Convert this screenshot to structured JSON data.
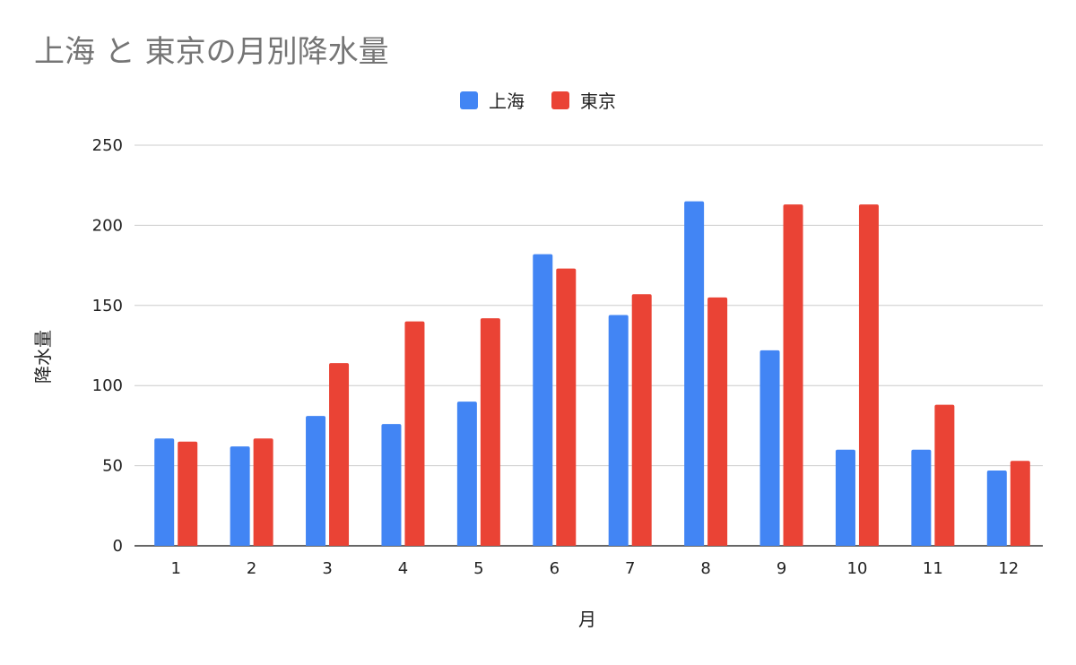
{
  "chart_data": {
    "type": "bar",
    "title": "上海 と 東京の月別降水量",
    "xlabel": "月",
    "ylabel": "降水量",
    "ylim": [
      0,
      250
    ],
    "yticks": [
      0,
      50,
      100,
      150,
      200,
      250
    ],
    "grid": true,
    "legend_position": "top",
    "categories": [
      "1",
      "2",
      "3",
      "4",
      "5",
      "6",
      "7",
      "8",
      "9",
      "10",
      "11",
      "12"
    ],
    "series": [
      {
        "name": "上海",
        "color": "#4285F4",
        "values": [
          67,
          62,
          81,
          76,
          90,
          182,
          144,
          215,
          122,
          60,
          60,
          47
        ]
      },
      {
        "name": "東京",
        "color": "#EA4335",
        "values": [
          65,
          67,
          114,
          140,
          142,
          173,
          157,
          155,
          213,
          213,
          88,
          53
        ]
      }
    ]
  }
}
